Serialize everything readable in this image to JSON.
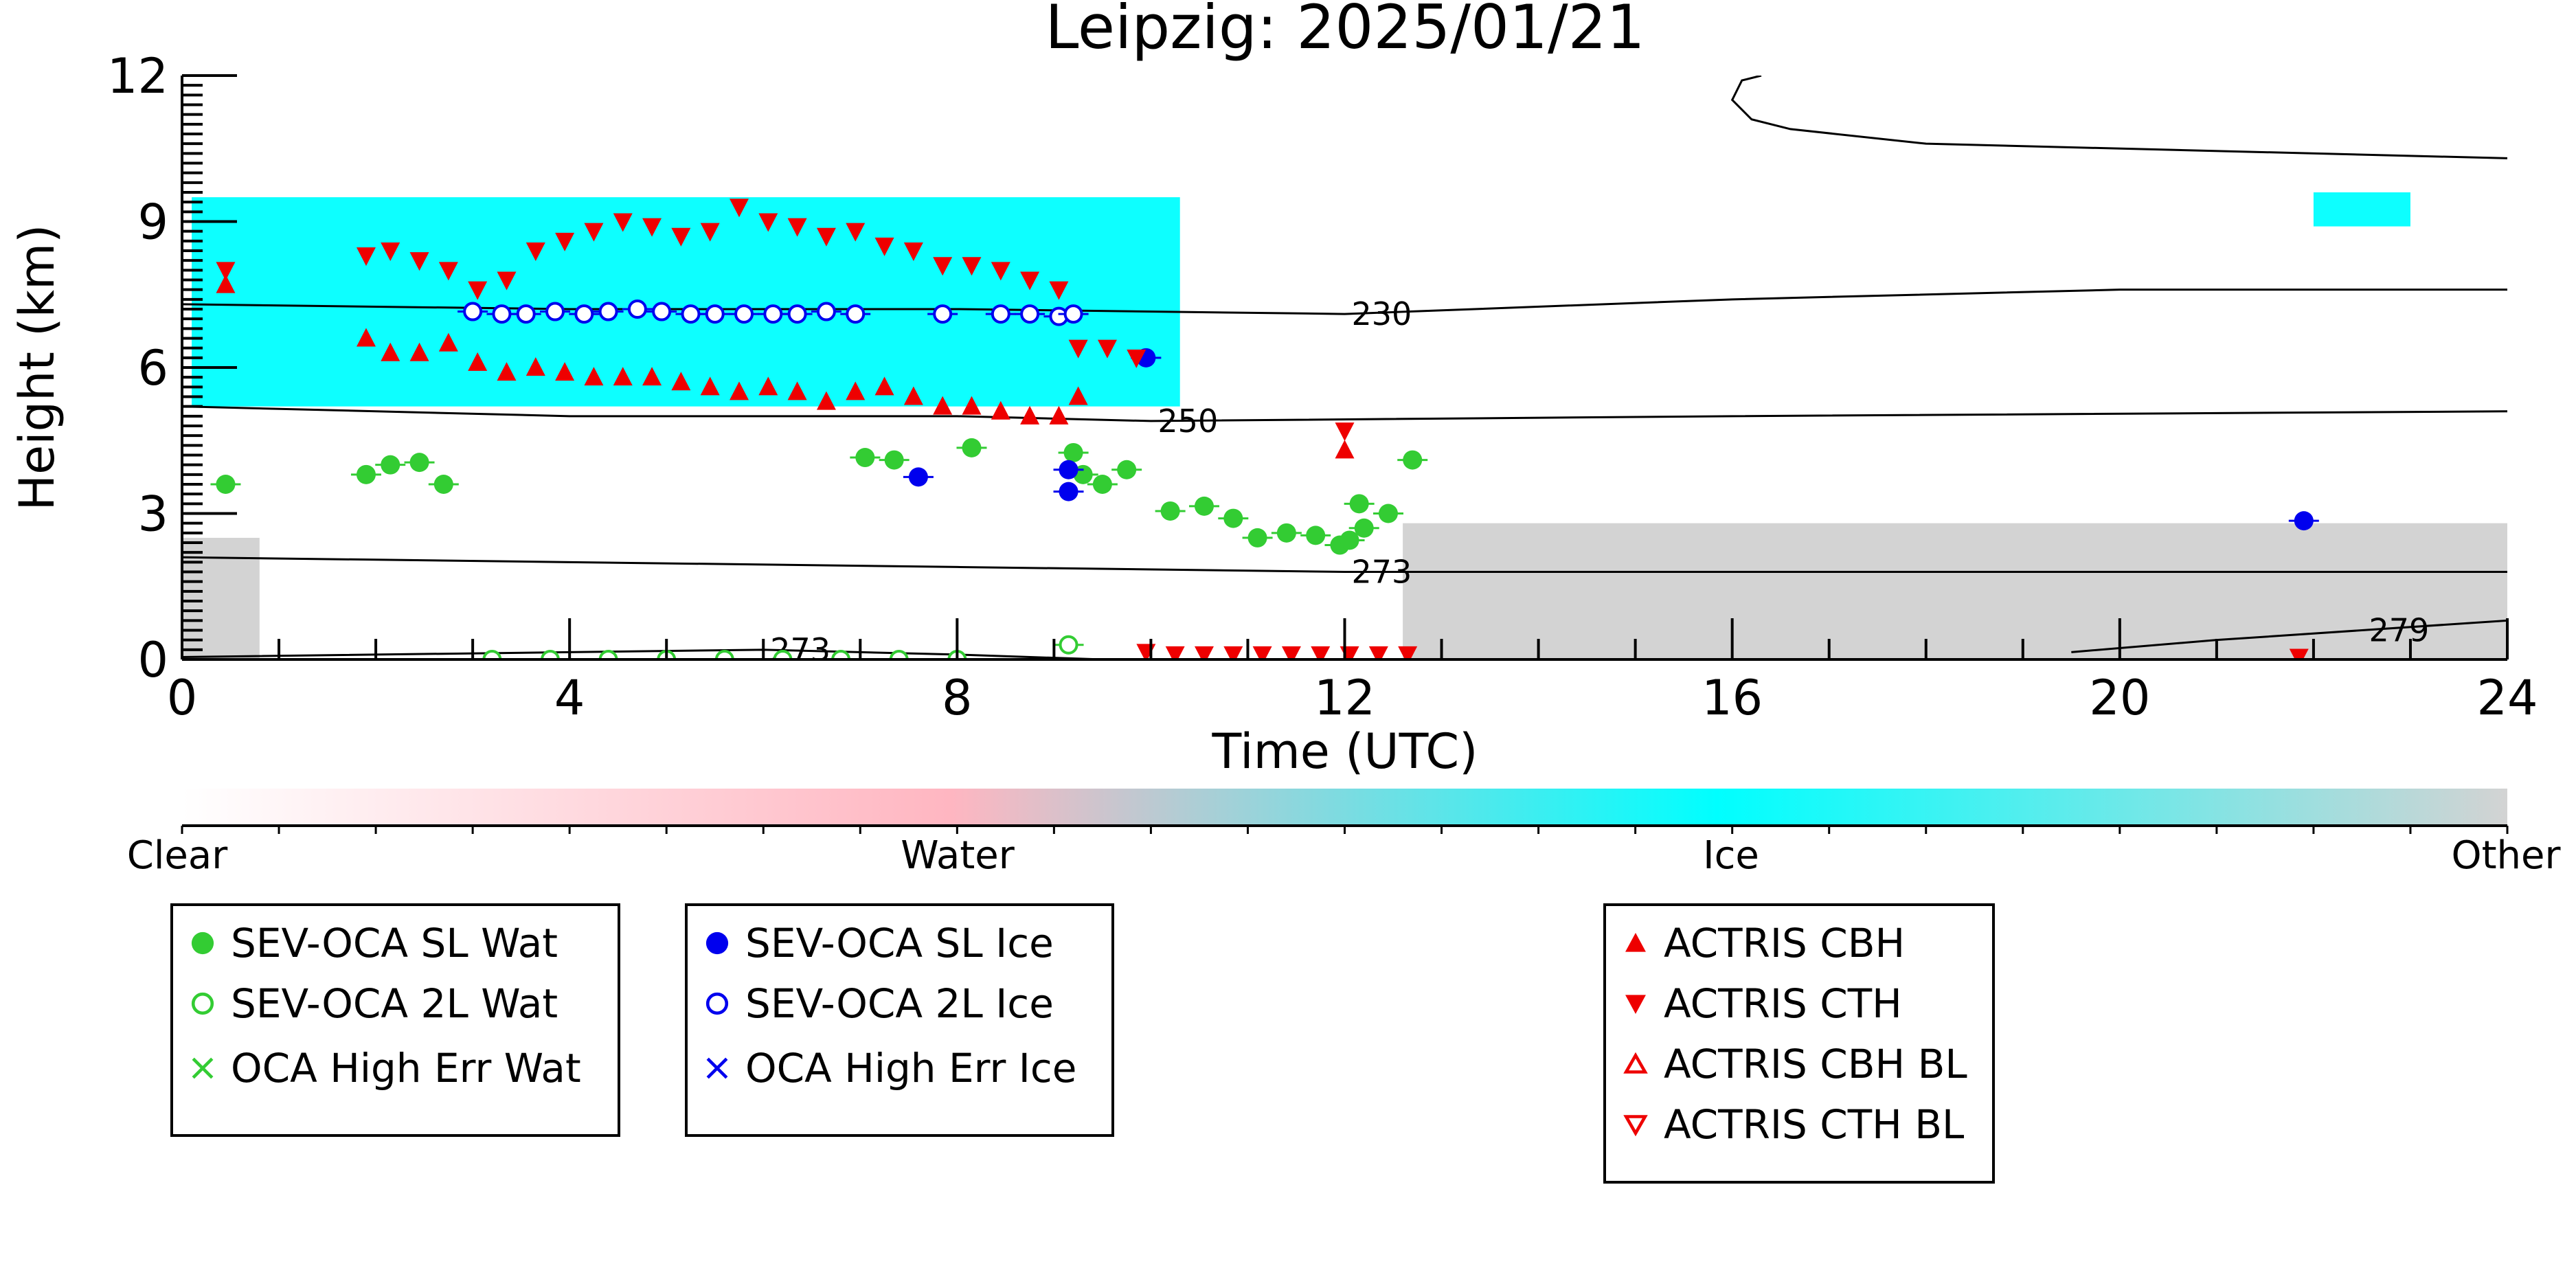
{
  "chart_data": {
    "type": "scatter",
    "title": "Leipzig: 2025/01/21",
    "xlabel": "Time (UTC)",
    "ylabel": "Height (km)",
    "xlim": [
      0,
      24
    ],
    "ylim": [
      0,
      12
    ],
    "x_ticks": [
      "0",
      "4",
      "8",
      "12",
      "16",
      "20",
      "24"
    ],
    "y_ticks": [
      "0",
      "3",
      "6",
      "9",
      "12"
    ],
    "grid": false,
    "background_field": {
      "description_of_classes": [
        "Clear",
        "Water",
        "Ice",
        "Other"
      ],
      "colors": [
        "#ffffff",
        "#ffb6c1",
        "#00ffff",
        "#d3d3d3"
      ],
      "regions": [
        {
          "class": "Ice",
          "x_start": 0.1,
          "x_end": 10.3,
          "y_bottom": 5.2,
          "y_top": 9.5
        },
        {
          "class": "Ice",
          "x_start": 22.0,
          "x_end": 23.0,
          "y_bottom": 8.9,
          "y_top": 9.6
        },
        {
          "class": "Other",
          "x_start": 0.0,
          "x_end": 0.8,
          "y_bottom": 0.0,
          "y_top": 2.5
        },
        {
          "class": "Other",
          "x_start": 12.6,
          "x_end": 24.0,
          "y_bottom": 0.0,
          "y_top": 2.8
        }
      ]
    },
    "colorbar": {
      "labels": [
        "Clear",
        "Water",
        "Ice",
        "Other"
      ]
    },
    "temperature_contours": [
      {
        "label": "230",
        "points": [
          [
            0,
            7.3
          ],
          [
            4,
            7.2
          ],
          [
            8,
            7.2
          ],
          [
            12,
            7.1
          ],
          [
            16,
            7.4
          ],
          [
            20,
            7.6
          ],
          [
            24,
            7.6
          ]
        ]
      },
      {
        "label": "250",
        "points": [
          [
            0,
            5.2
          ],
          [
            4,
            5.0
          ],
          [
            8,
            5.0
          ],
          [
            10,
            4.9
          ],
          [
            16,
            5.0
          ],
          [
            24,
            5.1
          ]
        ]
      },
      {
        "label": "273",
        "points": [
          [
            0,
            2.1
          ],
          [
            4,
            2.0
          ],
          [
            8,
            1.9
          ],
          [
            12,
            1.8
          ],
          [
            16,
            1.8
          ],
          [
            24,
            1.8
          ]
        ]
      },
      {
        "label": "273",
        "points": [
          [
            0,
            0.05
          ],
          [
            4,
            0.15
          ],
          [
            6,
            0.2
          ],
          [
            8,
            0.1
          ],
          [
            9.5,
            0.0
          ]
        ]
      },
      {
        "label": "279",
        "points": [
          [
            19.5,
            0.15
          ],
          [
            21,
            0.4
          ],
          [
            22.5,
            0.6
          ],
          [
            24,
            0.8
          ]
        ]
      },
      {
        "label": "",
        "points": [
          [
            16.3,
            12.0
          ],
          [
            16.1,
            11.9
          ],
          [
            16.0,
            11.5
          ],
          [
            16.2,
            11.1
          ],
          [
            16.6,
            10.9
          ],
          [
            18,
            10.6
          ],
          [
            24,
            10.3
          ]
        ]
      }
    ],
    "legend_placement": "below",
    "series": [
      {
        "name": "SEV-OCA SL Wat",
        "marker": "filled-circle",
        "color": "#33cc33",
        "points": [
          [
            0.45,
            3.6
          ],
          [
            1.9,
            3.8
          ],
          [
            2.15,
            4.0
          ],
          [
            2.45,
            4.05
          ],
          [
            2.7,
            3.6
          ],
          [
            7.05,
            4.15
          ],
          [
            7.35,
            4.1
          ],
          [
            8.15,
            4.35
          ],
          [
            9.2,
            4.25
          ],
          [
            9.3,
            3.8
          ],
          [
            9.5,
            3.6
          ],
          [
            9.75,
            3.9
          ],
          [
            10.2,
            3.05
          ],
          [
            10.55,
            3.15
          ],
          [
            10.85,
            2.9
          ],
          [
            11.1,
            2.5
          ],
          [
            11.4,
            2.6
          ],
          [
            11.7,
            2.55
          ],
          [
            11.95,
            2.35
          ],
          [
            12.05,
            2.45
          ],
          [
            12.15,
            3.2
          ],
          [
            12.2,
            2.7
          ],
          [
            12.45,
            3.0
          ],
          [
            12.7,
            4.1
          ]
        ]
      },
      {
        "name": "SEV-OCA 2L Wat",
        "marker": "open-circle",
        "color": "#33cc33",
        "points": [
          [
            3.2,
            0.0
          ],
          [
            3.8,
            0.0
          ],
          [
            4.4,
            0.0
          ],
          [
            5.0,
            0.0
          ],
          [
            5.6,
            0.0
          ],
          [
            6.2,
            0.0
          ],
          [
            6.8,
            0.0
          ],
          [
            7.4,
            0.0
          ],
          [
            8.0,
            0.0
          ],
          [
            9.15,
            0.3
          ]
        ]
      },
      {
        "name": "OCA High Err Wat",
        "marker": "x",
        "color": "#33cc33",
        "points": []
      },
      {
        "name": "SEV-OCA SL Ice",
        "marker": "filled-circle",
        "color": "#0000ee",
        "points": [
          [
            7.6,
            3.75
          ],
          [
            9.15,
            3.9
          ],
          [
            9.15,
            3.45
          ],
          [
            9.95,
            6.2
          ],
          [
            21.9,
            2.85
          ]
        ]
      },
      {
        "name": "SEV-OCA 2L Ice",
        "marker": "open-circle",
        "color": "#0000ee",
        "points": [
          [
            3.0,
            7.15
          ],
          [
            3.3,
            7.1
          ],
          [
            3.55,
            7.1
          ],
          [
            3.85,
            7.15
          ],
          [
            4.15,
            7.1
          ],
          [
            4.4,
            7.15
          ],
          [
            4.7,
            7.2
          ],
          [
            4.95,
            7.15
          ],
          [
            5.25,
            7.1
          ],
          [
            5.5,
            7.1
          ],
          [
            5.8,
            7.1
          ],
          [
            6.1,
            7.1
          ],
          [
            6.35,
            7.1
          ],
          [
            6.65,
            7.15
          ],
          [
            6.95,
            7.1
          ],
          [
            7.85,
            7.1
          ],
          [
            8.45,
            7.1
          ],
          [
            8.75,
            7.1
          ],
          [
            9.05,
            7.05
          ],
          [
            9.2,
            7.1
          ]
        ]
      },
      {
        "name": "OCA High Err Ice",
        "marker": "x",
        "color": "#0000ee",
        "points": []
      },
      {
        "name": "ACTRIS CBH",
        "marker": "filled-triangle-up",
        "color": "#ee0000",
        "points": [
          [
            0.45,
            7.7
          ],
          [
            1.9,
            6.6
          ],
          [
            2.15,
            6.3
          ],
          [
            2.45,
            6.3
          ],
          [
            2.75,
            6.5
          ],
          [
            3.05,
            6.1
          ],
          [
            3.35,
            5.9
          ],
          [
            3.65,
            6.0
          ],
          [
            3.95,
            5.9
          ],
          [
            4.25,
            5.8
          ],
          [
            4.55,
            5.8
          ],
          [
            4.85,
            5.8
          ],
          [
            5.15,
            5.7
          ],
          [
            5.45,
            5.6
          ],
          [
            5.75,
            5.5
          ],
          [
            6.05,
            5.6
          ],
          [
            6.35,
            5.5
          ],
          [
            6.65,
            5.3
          ],
          [
            6.95,
            5.5
          ],
          [
            7.25,
            5.6
          ],
          [
            7.55,
            5.4
          ],
          [
            7.85,
            5.2
          ],
          [
            8.15,
            5.2
          ],
          [
            8.45,
            5.1
          ],
          [
            8.75,
            5.0
          ],
          [
            9.05,
            5.0
          ],
          [
            9.25,
            5.4
          ],
          [
            12.0,
            4.3
          ]
        ]
      },
      {
        "name": "ACTRIS CTH",
        "marker": "filled-triangle-down",
        "color": "#ee0000",
        "points": [
          [
            0.45,
            8.0
          ],
          [
            1.9,
            8.3
          ],
          [
            2.15,
            8.4
          ],
          [
            2.45,
            8.2
          ],
          [
            2.75,
            8.0
          ],
          [
            3.05,
            7.6
          ],
          [
            3.35,
            7.8
          ],
          [
            3.65,
            8.4
          ],
          [
            3.95,
            8.6
          ],
          [
            4.25,
            8.8
          ],
          [
            4.55,
            9.0
          ],
          [
            4.85,
            8.9
          ],
          [
            5.15,
            8.7
          ],
          [
            5.45,
            8.8
          ],
          [
            5.75,
            9.3
          ],
          [
            6.05,
            9.0
          ],
          [
            6.35,
            8.9
          ],
          [
            6.65,
            8.7
          ],
          [
            6.95,
            8.8
          ],
          [
            7.25,
            8.5
          ],
          [
            7.55,
            8.4
          ],
          [
            7.85,
            8.1
          ],
          [
            8.15,
            8.1
          ],
          [
            8.45,
            8.0
          ],
          [
            8.75,
            7.8
          ],
          [
            9.05,
            7.6
          ],
          [
            9.25,
            6.4
          ],
          [
            9.55,
            6.4
          ],
          [
            9.85,
            6.2
          ],
          [
            12.0,
            4.7
          ],
          [
            9.95,
            0.15
          ],
          [
            10.25,
            0.1
          ],
          [
            10.55,
            0.1
          ],
          [
            10.85,
            0.1
          ],
          [
            11.15,
            0.1
          ],
          [
            11.45,
            0.1
          ],
          [
            11.75,
            0.1
          ],
          [
            12.05,
            0.1
          ],
          [
            12.35,
            0.1
          ],
          [
            12.65,
            0.1
          ],
          [
            21.85,
            0.05
          ]
        ]
      },
      {
        "name": "ACTRIS CBH BL",
        "marker": "open-triangle-up",
        "color": "#ee0000",
        "points": []
      },
      {
        "name": "ACTRIS CTH BL",
        "marker": "open-triangle-down",
        "color": "#ee0000",
        "points": []
      }
    ]
  },
  "legend_groups": [
    {
      "entries": [
        "SEV-OCA SL Wat",
        "SEV-OCA 2L Wat",
        "OCA High Err Wat"
      ]
    },
    {
      "entries": [
        "SEV-OCA SL Ice",
        "SEV-OCA 2L Ice",
        "OCA High Err Ice"
      ]
    },
    {
      "entries": [
        "ACTRIS CBH",
        "ACTRIS CTH",
        "ACTRIS CBH BL",
        "ACTRIS CTH BL"
      ]
    }
  ]
}
